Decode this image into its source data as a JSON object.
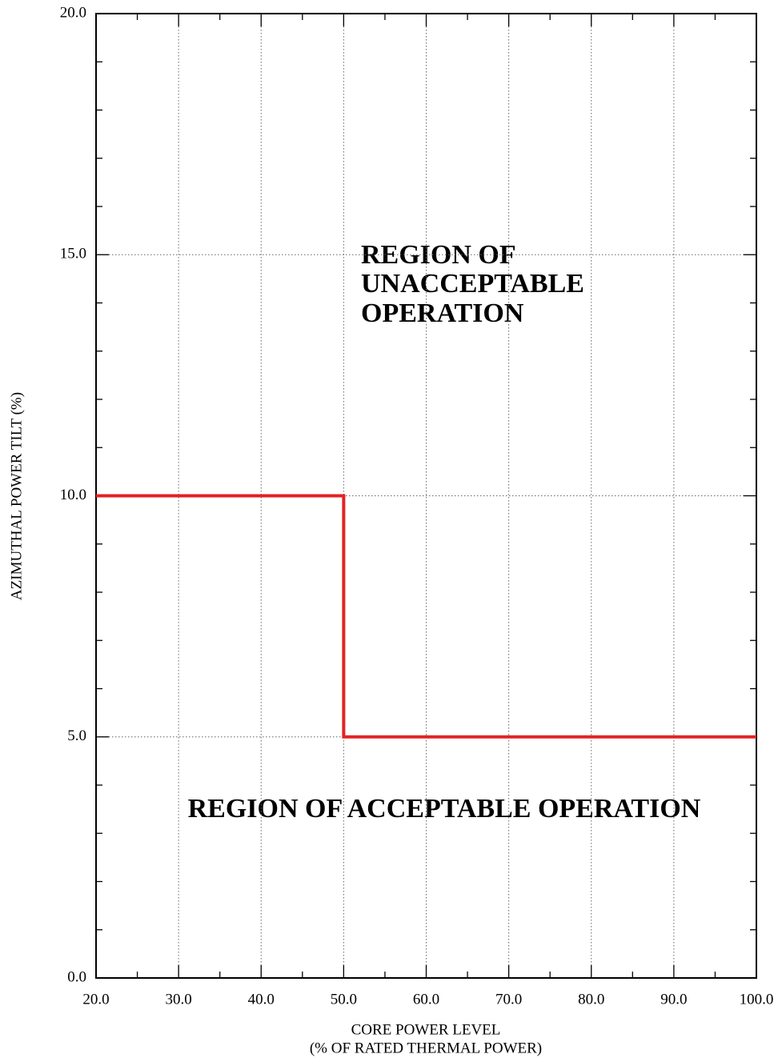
{
  "chart_data": {
    "type": "line",
    "xlabel": [
      "CORE POWER LEVEL",
      "(% OF RATED THERMAL POWER)"
    ],
    "ylabel": "AZIMUTHAL POWER TILT (%)",
    "annotations": [
      [
        "REGION OF",
        "UNACCEPTABLE",
        "OPERATION"
      ],
      [
        "REGION OF ACCEPTABLE OPERATION"
      ]
    ],
    "series": [
      {
        "color": "#e32222",
        "x": [
          20,
          50,
          50,
          100
        ],
        "values": [
          10,
          10,
          5,
          5
        ]
      }
    ],
    "xlim": [
      20,
      100
    ],
    "ylim": [
      0,
      20
    ],
    "xticks": [
      {
        "value": 20,
        "label": "20.0"
      },
      {
        "value": 30,
        "label": "30.0"
      },
      {
        "value": 40,
        "label": "40.0"
      },
      {
        "value": 50,
        "label": "50.0"
      },
      {
        "value": 60,
        "label": "60.0"
      },
      {
        "value": 70,
        "label": "70.0"
      },
      {
        "value": 80,
        "label": "80.0"
      },
      {
        "value": 90,
        "label": "90.0"
      },
      {
        "value": 100,
        "label": "100.0"
      }
    ],
    "yticks": [
      {
        "value": 0,
        "label": "0.0"
      },
      {
        "value": 5,
        "label": "5.0"
      },
      {
        "value": 10,
        "label": "10.0"
      },
      {
        "value": 15,
        "label": "15.0"
      },
      {
        "value": 20,
        "label": "20.0"
      }
    ],
    "xminorticks": [
      25,
      35,
      45,
      55,
      65,
      75,
      85,
      95
    ],
    "yminorticks": [
      1,
      2,
      3,
      4,
      6,
      7,
      8,
      9,
      11,
      12,
      13,
      14,
      16,
      17,
      18,
      19
    ],
    "grid": true
  }
}
